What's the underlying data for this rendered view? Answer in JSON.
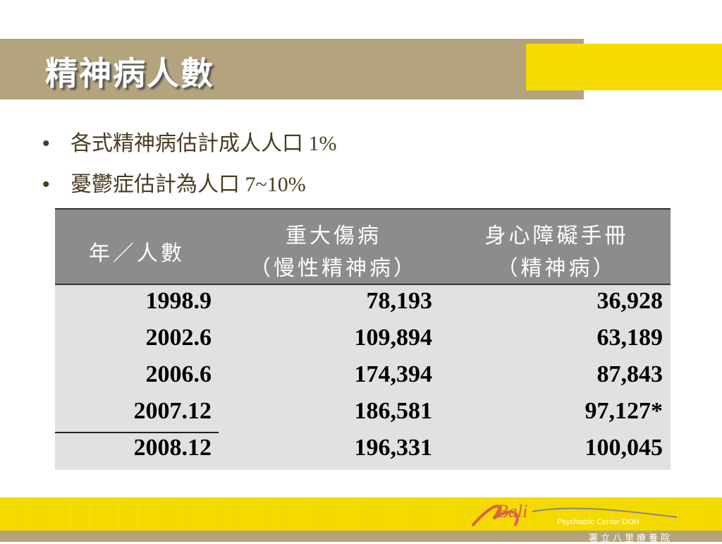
{
  "header": {
    "title": "精神病人數"
  },
  "bullets": [
    "各式精神病估計成人人口 1%",
    "憂鬱症估計為人口 7~10%"
  ],
  "table": {
    "headers": [
      [
        "年／人數"
      ],
      [
        "重大傷病",
        "（慢性精神病）"
      ],
      [
        "身心障礙手冊",
        "（精神病）"
      ]
    ],
    "rows": [
      [
        "1998.9",
        "78,193",
        "36,928"
      ],
      [
        "2002.6",
        "109,894",
        "63,189"
      ],
      [
        "2006.6",
        "174,394",
        "87,843"
      ],
      [
        "2007.12",
        "186,581",
        "97,127*"
      ],
      [
        "2008.12",
        "196,331",
        "100,045"
      ]
    ]
  },
  "footer": {
    "logo": "Bali",
    "org_en": "Psychiatric Center DOH",
    "org_zh": "署立八里療養院"
  }
}
